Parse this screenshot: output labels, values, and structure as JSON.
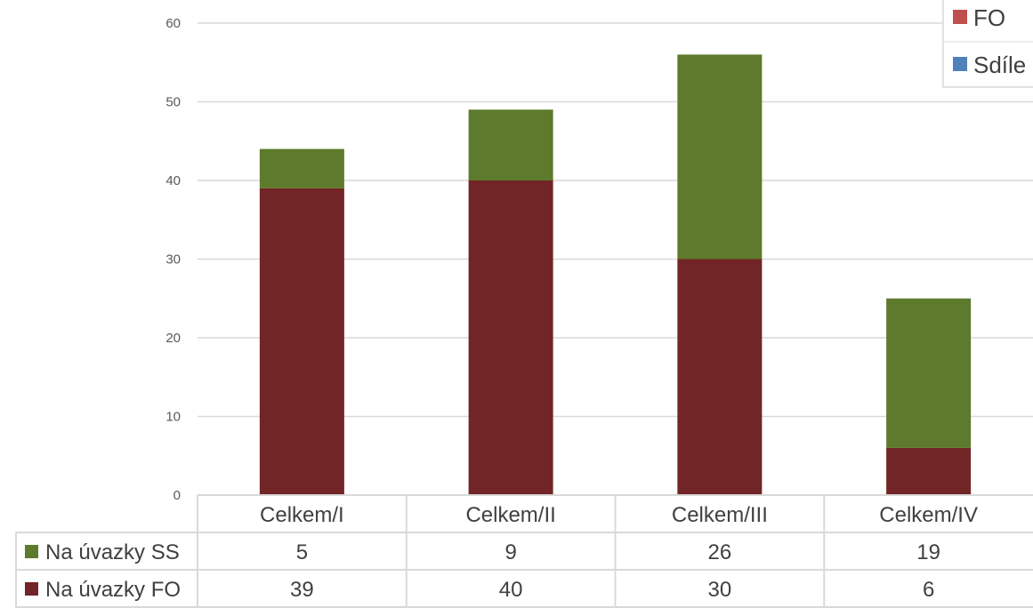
{
  "chart_data": {
    "type": "bar",
    "stacked": true,
    "categories": [
      "Celkem/I",
      "Celkem/II",
      "Celkem/III",
      "Celkem/IV"
    ],
    "series": [
      {
        "name": "Na úvazky FO",
        "color": "#722526",
        "values": [
          39,
          40,
          30,
          6
        ]
      },
      {
        "name": "Na úvazky SS",
        "color": "#5e7a2c",
        "values": [
          5,
          9,
          26,
          19
        ]
      }
    ],
    "yticks": [
      "0",
      "10",
      "20",
      "30",
      "40",
      "50",
      "60"
    ],
    "ylim": [
      0,
      60
    ],
    "grid": true,
    "data_table": true,
    "legend_placement": "top-right",
    "legend": [
      {
        "label": "FO",
        "color": "#c0504d"
      },
      {
        "label": "Sdíle",
        "color": "#4f81bd"
      }
    ]
  }
}
